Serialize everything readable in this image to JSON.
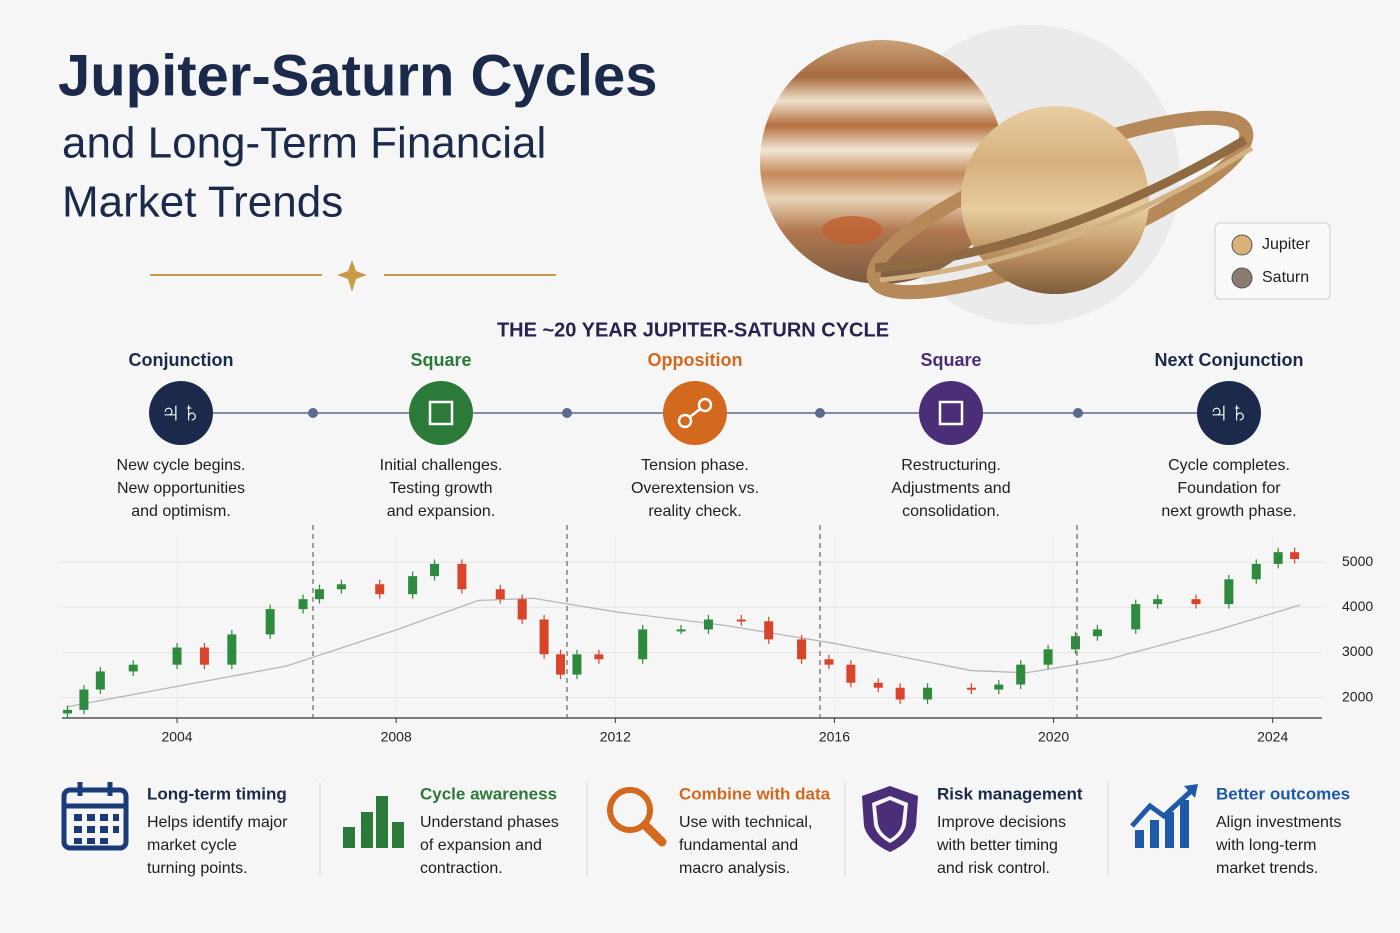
{
  "header": {
    "title": "Jupiter-Saturn Cycles",
    "subtitle": [
      "and Long-Term Financial",
      "Market Trends"
    ]
  },
  "legend": [
    {
      "name": "Jupiter",
      "color": "#d9b27a"
    },
    {
      "name": "Saturn",
      "color": "#8a7b70"
    }
  ],
  "cycle": {
    "title": "THE ~20 YEAR JUPITER-SATURN CYCLE",
    "phases": [
      {
        "name": "Conjunction",
        "color": "#1b2a4a",
        "symbol": "♃♄",
        "text": [
          "New cycle begins.",
          "New opportunities",
          "and optimism."
        ]
      },
      {
        "name": "Square",
        "color": "#2b7a3a",
        "text": [
          "Initial challenges.",
          "Testing growth",
          "and expansion."
        ]
      },
      {
        "name": "Opposition",
        "color": "#d2691e",
        "text": [
          "Tension phase.",
          "Overextension vs.",
          "reality check."
        ]
      },
      {
        "name": "Square",
        "color": "#4a2f78",
        "text": [
          "Restructuring.",
          "Adjustments and",
          "consolidation."
        ]
      },
      {
        "name": "Next Conjunction",
        "color": "#1b2a4a",
        "symbol": "♃♄",
        "text": [
          "Cycle completes.",
          "Foundation for",
          "next growth phase."
        ]
      }
    ]
  },
  "chart_data": {
    "type": "candlestick",
    "x": [
      2002.0,
      2002.3,
      2002.6,
      2003.2,
      2004.0,
      2004.5,
      2005.0,
      2005.7,
      2006.3,
      2006.6,
      2007.0,
      2007.7,
      2008.3,
      2008.7,
      2009.2,
      2009.9,
      2010.3,
      2010.7,
      2011.0,
      2011.3,
      2011.7,
      2012.5,
      2013.2,
      2013.7,
      2014.3,
      2014.8,
      2015.4,
      2015.9,
      2016.3,
      2016.8,
      2017.2,
      2017.7,
      2018.5,
      2019.0,
      2019.4,
      2019.9,
      2020.4,
      2020.8,
      2021.5,
      2021.9,
      2022.6,
      2023.2,
      2023.7,
      2024.1,
      2024.4
    ],
    "open": [
      1650,
      1730,
      2180,
      2580,
      2730,
      3110,
      2730,
      3400,
      3960,
      4180,
      4400,
      4510,
      4290,
      4690,
      4960,
      4400,
      4180,
      3730,
      2960,
      2510,
      2960,
      2850,
      3510,
      3510,
      3730,
      3690,
      3290,
      2850,
      2730,
      2330,
      2220,
      1960,
      2220,
      2180,
      2290,
      2730,
      3070,
      3360,
      3510,
      4070,
      4180,
      4070,
      4620,
      4960,
      5220
    ],
    "high": [
      1830,
      2280,
      2680,
      2830,
      3210,
      3210,
      3500,
      4060,
      4280,
      4500,
      4610,
      4610,
      4790,
      5060,
      5060,
      4500,
      4280,
      3830,
      3060,
      3060,
      3060,
      3610,
      3610,
      3830,
      3830,
      3790,
      3390,
      2950,
      2830,
      2430,
      2320,
      2320,
      2320,
      2390,
      2830,
      3170,
      3460,
      3610,
      4170,
      4280,
      4280,
      4720,
      5060,
      5320,
      5320
    ],
    "low": [
      1550,
      1630,
      2080,
      2480,
      2630,
      2630,
      2630,
      3300,
      3860,
      4080,
      4300,
      4190,
      4190,
      4590,
      4300,
      4080,
      3630,
      2860,
      2410,
      2410,
      2750,
      2750,
      3410,
      3410,
      3590,
      3190,
      2750,
      2630,
      2230,
      2120,
      1860,
      1860,
      2080,
      2080,
      2190,
      2630,
      2970,
      3260,
      3410,
      3970,
      3970,
      3970,
      4520,
      4860,
      4970
    ],
    "close": [
      1730,
      2180,
      2580,
      2730,
      3110,
      2730,
      3400,
      3960,
      4180,
      4400,
      4510,
      4290,
      4690,
      4960,
      4400,
      4180,
      3730,
      2960,
      2510,
      2960,
      2850,
      3510,
      3510,
      3730,
      3690,
      3290,
      2850,
      2730,
      2330,
      2220,
      1960,
      2220,
      2180,
      2290,
      2730,
      3070,
      3360,
      3510,
      4070,
      4180,
      4070,
      4620,
      4960,
      5220,
      5070
    ],
    "up_color": "#2e8b3e",
    "down_color": "#d9452b",
    "trend_line": {
      "x": [
        2002.0,
        2004.0,
        2006.0,
        2008.0,
        2009.5,
        2010.5,
        2012.0,
        2014.0,
        2016.0,
        2018.5,
        2019.5,
        2021.0,
        2023.0,
        2024.5
      ],
      "values": [
        1800,
        2250,
        2700,
        3500,
        4150,
        4200,
        3900,
        3600,
        3200,
        2600,
        2550,
        2850,
        3500,
        4050
      ],
      "color": "#b8b8b8"
    },
    "xlim": [
      2001.9,
      2024.9
    ],
    "xticks": [
      2004,
      2008,
      2012,
      2016,
      2020,
      2024
    ],
    "ylim": [
      1550,
      5600
    ],
    "yticks": [
      2000,
      3000,
      4000,
      5000
    ],
    "grid": true
  },
  "features": [
    {
      "title": "Long-term timing",
      "text": [
        "Helps identify major",
        "market cycle",
        "turning points."
      ]
    },
    {
      "title": "Cycle awareness",
      "text": [
        "Understand phases",
        "of expansion and",
        "contraction."
      ]
    },
    {
      "title": "Combine with data",
      "text": [
        "Use with technical,",
        "fundamental and",
        "macro analysis."
      ]
    },
    {
      "title": "Risk management",
      "text": [
        "Improve decisions",
        "with better timing",
        "and risk control."
      ]
    },
    {
      "title": "Better outcomes",
      "text": [
        "Align investments",
        "with long-term",
        "market trends."
      ]
    }
  ]
}
